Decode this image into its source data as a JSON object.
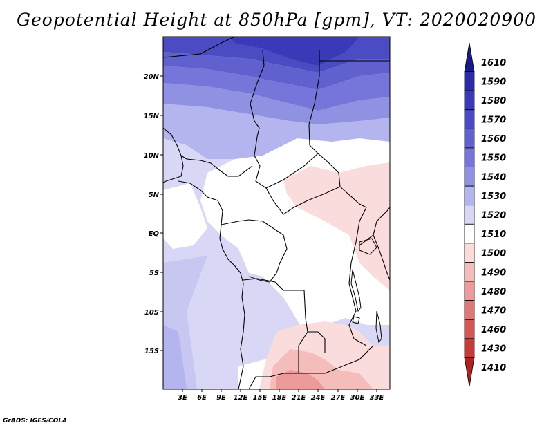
{
  "title": "Geopotential Height at 850hPa [gpm], VT: 2020020900",
  "credit": "GrADS: IGES/COLA",
  "lat_labels": [
    "20N",
    "15N",
    "10N",
    "5N",
    "EQ",
    "5S",
    "10S",
    "15S"
  ],
  "lon_labels": [
    "3E",
    "6E",
    "9E",
    "12E",
    "15E",
    "18E",
    "21E",
    "24E",
    "27E",
    "30E",
    "33E"
  ],
  "colorbar": {
    "levels": [
      "1610",
      "1590",
      "1580",
      "1570",
      "1560",
      "1550",
      "1540",
      "1530",
      "1520",
      "1510",
      "1500",
      "1490",
      "1480",
      "1470",
      "1460",
      "1430",
      "1410"
    ],
    "colors": [
      "#1a1a8c",
      "#2b2ba8",
      "#3a3ab8",
      "#4b4bc4",
      "#6060cf",
      "#7676da",
      "#9191e4",
      "#b4b4ee",
      "#d8d8f6",
      "#ffffff",
      "#fadcdc",
      "#f5bcbc",
      "#ec9a9a",
      "#e07878",
      "#d45656",
      "#c63a3a",
      "#b32222"
    ]
  }
}
